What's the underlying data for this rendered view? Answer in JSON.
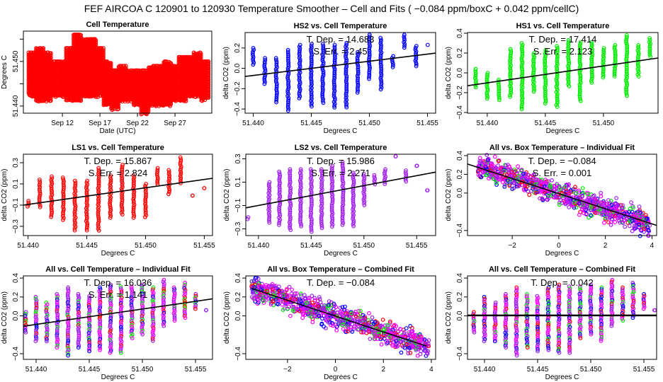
{
  "title": "FEF   AIRCOA C   120901 to 120930   Temperature Smoother – Cell and Fits ( −0.084  ppm/boxC +  0.042  ppm/cellC)",
  "colors": {
    "red": "#ff0000",
    "blue": "#0000ff",
    "green": "#00ee00",
    "purple": "#a020f0",
    "magenta": "#ff00ff",
    "line": "#000000"
  },
  "chart_data": [
    {
      "type": "scatter",
      "title": "Cell Temperature",
      "xlabel": "Date (UTC)",
      "ylabel": "Degrees C",
      "xlim": [
        6.8,
        31.9
      ],
      "ylim": [
        51.4384,
        51.4568
      ],
      "xticks": [
        12,
        17,
        22,
        27
      ],
      "xtick_labels": [
        "Sep 12",
        "Sep 17",
        "Sep 22",
        "Sep 27"
      ],
      "yticks": [
        51.44,
        51.445,
        51.45,
        51.455
      ],
      "ytick_labels": [
        "51.440",
        "",
        "51.450",
        ""
      ],
      "color": "red",
      "point_step": 0.0006,
      "columns": [
        [
          8,
          51.442,
          51.452
        ],
        [
          9,
          51.441,
          51.453
        ],
        [
          10,
          51.441,
          51.452
        ],
        [
          11,
          51.442,
          51.45
        ],
        [
          12,
          51.442,
          51.45
        ],
        [
          13,
          51.441,
          51.453
        ],
        [
          14,
          51.441,
          51.456
        ],
        [
          15,
          51.442,
          51.455
        ],
        [
          16,
          51.442,
          51.455
        ],
        [
          17,
          51.442,
          51.453
        ],
        [
          18,
          51.44,
          51.45
        ],
        [
          19,
          51.439,
          51.448
        ],
        [
          20,
          51.441,
          51.449
        ],
        [
          21,
          51.441,
          51.448
        ],
        [
          22,
          51.44,
          51.448
        ],
        [
          23,
          51.438,
          51.448
        ],
        [
          24,
          51.44,
          51.449
        ],
        [
          25,
          51.44,
          51.449
        ],
        [
          26,
          51.44,
          51.45
        ],
        [
          27,
          51.441,
          51.449
        ],
        [
          28,
          51.441,
          51.451
        ],
        [
          29,
          51.442,
          51.451
        ],
        [
          30,
          51.442,
          51.452
        ],
        [
          31,
          51.441,
          51.45
        ]
      ]
    },
    {
      "type": "scatter",
      "title": "HS2 vs. Cell Temperature",
      "xlabel": "Degrees C",
      "ylabel": "delta CO2 (ppm)",
      "xlim": [
        51.4393,
        51.4557
      ],
      "ylim": [
        -0.441,
        0.352
      ],
      "xticks": [
        51.44,
        51.445,
        51.45,
        51.455
      ],
      "xtick_labels": [
        "51.440",
        "51.445",
        "51.450",
        "51.455"
      ],
      "yticks": [
        -0.4,
        -0.2,
        0.0,
        0.2
      ],
      "ytick_labels": [
        "−0.4",
        "−0.2",
        "0.0",
        "0.2"
      ],
      "color": "blue",
      "annotation": [
        "T. Dep. =  14.683",
        "S. Err. =  2.45"
      ],
      "fit": {
        "x": [
          51.4393,
          51.4557
        ],
        "y": [
          -0.08,
          0.15
        ]
      },
      "columns": [
        [
          51.44,
          0.03,
          0.2
        ],
        [
          51.441,
          -0.17,
          0.1
        ],
        [
          51.442,
          -0.35,
          0.1
        ],
        [
          51.443,
          -0.42,
          0.18
        ],
        [
          51.444,
          -0.31,
          0.23
        ],
        [
          51.445,
          -0.38,
          0.24
        ],
        [
          51.446,
          -0.35,
          0.24
        ],
        [
          51.447,
          -0.39,
          0.23
        ],
        [
          51.448,
          -0.39,
          0.25
        ],
        [
          51.449,
          -0.25,
          0.16
        ],
        [
          51.45,
          -0.12,
          0.33
        ],
        [
          51.451,
          -0.22,
          0.3
        ],
        [
          51.452,
          0.0,
          0.12
        ],
        [
          51.453,
          0.2,
          0.33
        ],
        [
          51.454,
          0.02,
          0.22
        ],
        [
          51.455,
          0.22,
          0.23
        ]
      ]
    },
    {
      "type": "scatter",
      "title": "HS1 vs. Cell Temperature",
      "xlabel": "Degrees C",
      "ylabel": "delta CO2 (ppm)",
      "xlim": [
        51.4383,
        51.4547
      ],
      "ylim": [
        -0.407,
        0.407
      ],
      "xticks": [
        51.44,
        51.445,
        51.45
      ],
      "xtick_labels": [
        "51.440",
        "51.445",
        "51.450"
      ],
      "yticks": [
        -0.4,
        -0.2,
        0.0,
        0.2,
        0.4
      ],
      "ytick_labels": [
        "−0.4",
        "−0.2",
        "0.0",
        "0.2",
        "0.4"
      ],
      "color": "green",
      "annotation": [
        "T. Dep. =  17.414",
        "S. Err. =  2.123"
      ],
      "fit": {
        "x": [
          51.4383,
          51.4547
        ],
        "y": [
          -0.13,
          0.15
        ]
      },
      "columns": [
        [
          51.439,
          -0.16,
          0.04
        ],
        [
          51.44,
          -0.27,
          0.0
        ],
        [
          51.441,
          -0.28,
          -0.07
        ],
        [
          51.442,
          -0.25,
          0.24
        ],
        [
          51.443,
          -0.38,
          0.3
        ],
        [
          51.444,
          -0.2,
          0.2
        ],
        [
          51.445,
          -0.32,
          0.23
        ],
        [
          51.446,
          -0.35,
          0.27
        ],
        [
          51.447,
          -0.14,
          0.33
        ],
        [
          51.448,
          -0.3,
          0.31
        ],
        [
          51.449,
          -0.1,
          0.31
        ],
        [
          51.45,
          -0.05,
          0.25
        ],
        [
          51.451,
          -0.04,
          0.28
        ],
        [
          51.452,
          -0.25,
          0.38
        ],
        [
          51.453,
          -0.05,
          0.28
        ],
        [
          51.454,
          0.15,
          0.35
        ]
      ]
    },
    {
      "type": "scatter",
      "title": "LS1 vs. Cell Temperature",
      "xlabel": "Degrees C",
      "ylabel": "delta CO2 (ppm)",
      "xlim": [
        51.4396,
        51.4557
      ],
      "ylim": [
        -0.387,
        0.38
      ],
      "xticks": [
        51.44,
        51.445,
        51.45,
        51.455
      ],
      "xtick_labels": [
        "51.440",
        "51.445",
        "51.450",
        "51.455"
      ],
      "yticks": [
        -0.3,
        -0.1,
        0.1,
        0.3
      ],
      "ytick_labels": [
        "−0.3",
        "−0.1",
        "0.1",
        "0.3"
      ],
      "color": "red",
      "annotation": [
        "T. Dep. =  15.867",
        "S. Err. =  2.824"
      ],
      "fit": {
        "x": [
          51.4396,
          51.4557
        ],
        "y": [
          -0.1,
          0.153
        ]
      },
      "columns": [
        [
          51.44,
          -0.12,
          -0.06
        ],
        [
          51.441,
          -0.12,
          0.14
        ],
        [
          51.442,
          -0.22,
          0.17
        ],
        [
          51.443,
          -0.25,
          0.16
        ],
        [
          51.444,
          -0.34,
          0.13
        ],
        [
          51.445,
          -0.35,
          0.13
        ],
        [
          51.446,
          -0.35,
          0.25
        ],
        [
          51.447,
          -0.22,
          0.18
        ],
        [
          51.448,
          -0.19,
          0.28
        ],
        [
          51.449,
          -0.22,
          0.18
        ],
        [
          51.45,
          -0.22,
          0.1
        ],
        [
          51.451,
          0.09,
          0.25
        ],
        [
          51.452,
          -0.01,
          0.23
        ],
        [
          51.453,
          0.1,
          0.35
        ],
        [
          51.454,
          -0.01,
          -0.01
        ],
        [
          51.455,
          0.06,
          0.06
        ]
      ]
    },
    {
      "type": "scatter",
      "title": "LS2 vs. Cell Temperature",
      "xlabel": "Degrees C",
      "ylabel": "delta CO2 (ppm)",
      "xlim": [
        51.4388,
        51.4568
      ],
      "ylim": [
        -0.357,
        0.339
      ],
      "xticks": [
        51.44,
        51.445,
        51.45,
        51.455
      ],
      "xtick_labels": [
        "51.440",
        "51.445",
        "51.450",
        "51.455"
      ],
      "yticks": [
        -0.3,
        -0.1,
        0.1,
        0.3
      ],
      "ytick_labels": [
        "−0.3",
        "−0.1",
        "0.1",
        "0.3"
      ],
      "color": "purple",
      "annotation": [
        "T. Dep. =  15.986",
        "S. Err. =  2.271"
      ],
      "fit": {
        "x": [
          51.4388,
          51.4568
        ],
        "y": [
          -0.12,
          0.186
        ]
      },
      "columns": [
        [
          51.439,
          -0.23,
          -0.2
        ],
        [
          51.441,
          -0.26,
          0.1
        ],
        [
          51.442,
          -0.27,
          0.19
        ],
        [
          51.443,
          -0.32,
          0.21
        ],
        [
          51.444,
          -0.28,
          0.21
        ],
        [
          51.445,
          -0.34,
          0.21
        ],
        [
          51.446,
          -0.3,
          0.21
        ],
        [
          51.447,
          -0.28,
          0.24
        ],
        [
          51.448,
          -0.28,
          0.27
        ],
        [
          51.449,
          -0.28,
          0.18
        ],
        [
          51.45,
          -0.1,
          0.17
        ],
        [
          51.451,
          0.07,
          0.16
        ],
        [
          51.452,
          0.07,
          0.21
        ],
        [
          51.453,
          0.32,
          0.32
        ],
        [
          51.454,
          0.1,
          0.2
        ],
        [
          51.455,
          0.24,
          0.24
        ],
        [
          51.456,
          0.03,
          0.03
        ]
      ]
    },
    {
      "type": "scatter",
      "title": "All vs. Box Temperature – Individual Fit",
      "xlabel": "Degrees C",
      "ylabel": "delta CO2 (ppm)",
      "xlim": [
        -3.92,
        4.2
      ],
      "ylim": [
        -0.454,
        0.415
      ],
      "xticks": [
        -2,
        0,
        2,
        4
      ],
      "xtick_labels": [
        "−2",
        "0",
        "2",
        "4"
      ],
      "yticks": [
        -0.4,
        0.0,
        0.2,
        0.4
      ],
      "ytick_labels": [
        "−0.4",
        "0.0",
        "0.2",
        "0.4"
      ],
      "color": "mixed",
      "annotation": [
        "T. Dep. =  −0.084",
        "S. Err. =  0.001"
      ],
      "fit": {
        "x": [
          -3.92,
          4.2
        ],
        "y": [
          0.31,
          -0.345
        ]
      },
      "band": {
        "x": [
          -3.5,
          3.9
        ],
        "slope": -0.084,
        "intercept": 0.0,
        "spread": 0.1
      }
    },
    {
      "type": "scatter",
      "title": "All vs. Cell Temperature – Individual Fit",
      "xlabel": "Degrees C",
      "ylabel": "delta CO2 (ppm)",
      "xlim": [
        51.4388,
        51.4566
      ],
      "ylim": [
        -0.46,
        0.423
      ],
      "xticks": [
        51.44,
        51.445,
        51.45,
        51.455
      ],
      "xtick_labels": [
        "51.440",
        "51.445",
        "51.450",
        "51.455"
      ],
      "yticks": [
        -0.4,
        0.0,
        0.2,
        0.4
      ],
      "ytick_labels": [
        "−0.4",
        "0.0",
        "0.2",
        "0.4"
      ],
      "color": "mixed",
      "annotation": [
        "T. Dep. =  16.036",
        "S. Err. =  1.141"
      ],
      "fit": {
        "x": [
          51.4388,
          51.4566
        ],
        "y": [
          -0.11,
          0.18
        ]
      },
      "columns": [
        [
          51.439,
          -0.18,
          0.04
        ],
        [
          51.44,
          -0.28,
          0.2
        ],
        [
          51.441,
          -0.28,
          0.14
        ],
        [
          51.442,
          -0.35,
          0.23
        ],
        [
          51.443,
          -0.42,
          0.3
        ],
        [
          51.444,
          -0.34,
          0.23
        ],
        [
          51.445,
          -0.38,
          0.21
        ],
        [
          51.446,
          -0.37,
          0.3
        ],
        [
          51.447,
          -0.39,
          0.33
        ],
        [
          51.448,
          -0.39,
          0.31
        ],
        [
          51.449,
          -0.25,
          0.31
        ],
        [
          51.45,
          -0.2,
          0.33
        ],
        [
          51.451,
          -0.27,
          0.3
        ],
        [
          51.452,
          -0.12,
          0.38
        ],
        [
          51.453,
          -0.05,
          0.3
        ],
        [
          51.454,
          -0.02,
          0.35
        ],
        [
          51.455,
          0.07,
          0.23
        ],
        [
          51.456,
          0.06,
          0.06
        ]
      ]
    },
    {
      "type": "scatter",
      "title": "All vs. Box Temperature – Combined Fit",
      "xlabel": "Degrees C",
      "ylabel": "delta CO2 (ppm)",
      "xlim": [
        -3.74,
        4.18
      ],
      "ylim": [
        -0.46,
        0.423
      ],
      "xticks": [
        -2,
        0,
        2,
        4
      ],
      "xtick_labels": [
        "−2",
        "0",
        "2",
        "4"
      ],
      "yticks": [
        -0.4,
        0.0,
        0.2,
        0.4
      ],
      "ytick_labels": [
        "−0.4",
        "0.0",
        "0.2",
        "0.4"
      ],
      "color": "mixed",
      "annotation": [
        "T. Dep. =  −0.084"
      ],
      "fit": {
        "x": [
          -3.5,
          3.8
        ],
        "y": [
          0.29,
          -0.32
        ]
      },
      "band": {
        "x": [
          -3.5,
          3.9
        ],
        "slope": -0.084,
        "intercept": 0.0,
        "spread": 0.1
      }
    },
    {
      "type": "scatter",
      "title": "All vs. Cell Temperature – Combined Fit",
      "xlabel": "Degrees C",
      "ylabel": "delta CO2 (ppm)",
      "xlim": [
        51.4384,
        51.4562
      ],
      "ylim": [
        -0.46,
        0.423
      ],
      "xticks": [
        51.44,
        51.445,
        51.45,
        51.455
      ],
      "xtick_labels": [
        "51.440",
        "51.445",
        "51.450",
        "51.455"
      ],
      "yticks": [
        -0.4,
        0.0,
        0.2,
        0.4
      ],
      "ytick_labels": [
        "−0.4",
        "0.0",
        "0.2",
        "0.4"
      ],
      "color": "mixed",
      "annotation": [
        "T. Dep. =  0.042"
      ],
      "fit": {
        "x": [
          51.4384,
          51.4562
        ],
        "y": [
          0.005,
          0.005
        ]
      },
      "columns": [
        [
          51.439,
          -0.18,
          0.04
        ],
        [
          51.44,
          -0.28,
          0.2
        ],
        [
          51.441,
          -0.28,
          0.14
        ],
        [
          51.442,
          -0.35,
          0.23
        ],
        [
          51.443,
          -0.42,
          0.3
        ],
        [
          51.444,
          -0.34,
          0.23
        ],
        [
          51.445,
          -0.38,
          0.21
        ],
        [
          51.446,
          -0.37,
          0.3
        ],
        [
          51.447,
          -0.39,
          0.33
        ],
        [
          51.448,
          -0.39,
          0.31
        ],
        [
          51.449,
          -0.25,
          0.31
        ],
        [
          51.45,
          -0.2,
          0.33
        ],
        [
          51.451,
          -0.27,
          0.3
        ],
        [
          51.452,
          -0.12,
          0.38
        ],
        [
          51.453,
          -0.05,
          0.3
        ],
        [
          51.454,
          -0.02,
          0.35
        ],
        [
          51.455,
          0.07,
          0.23
        ],
        [
          51.456,
          0.06,
          0.06
        ]
      ]
    }
  ]
}
